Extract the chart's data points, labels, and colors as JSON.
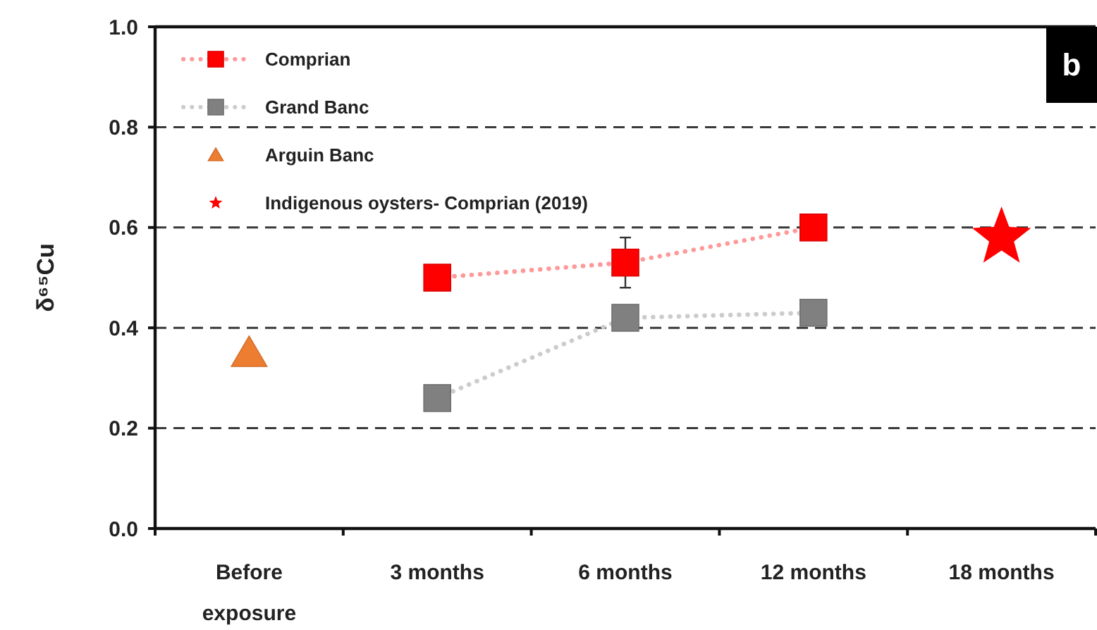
{
  "chart_data": {
    "type": "line",
    "ylabel": "δ⁶⁵Cu",
    "categories": [
      "Before exposure",
      "3 months",
      "6 months",
      "12 months",
      "18 months"
    ],
    "series": [
      {
        "name": "Comprian",
        "color": "#ff0000",
        "marker": "square",
        "line_style": "dotted",
        "values": [
          null,
          0.5,
          0.53,
          0.6,
          null
        ],
        "errors": [
          null,
          null,
          0.05,
          null,
          null
        ]
      },
      {
        "name": "Grand Banc",
        "color": "#808080",
        "marker": "square",
        "line_style": "dotted",
        "values": [
          null,
          0.26,
          0.42,
          0.43,
          null
        ]
      },
      {
        "name": "Arguin Banc",
        "type": "scatter",
        "color": "#ed7d31",
        "marker": "triangle",
        "values": [
          0.35,
          null,
          null,
          null,
          null
        ]
      },
      {
        "name": "Indigenous oysters- Comprian (2019)",
        "type": "scatter",
        "color": "#ff0000",
        "marker": "star",
        "values": [
          null,
          null,
          null,
          null,
          0.58
        ]
      }
    ],
    "ylim": [
      0,
      1
    ],
    "yticks": [
      {
        "value": 0,
        "label": "0.0"
      },
      0.2,
      0.4,
      0.6,
      0.8,
      {
        "value": 1,
        "label": "1.0"
      }
    ],
    "grid": "y",
    "legend": "top left",
    "annotations": [
      "b"
    ]
  }
}
